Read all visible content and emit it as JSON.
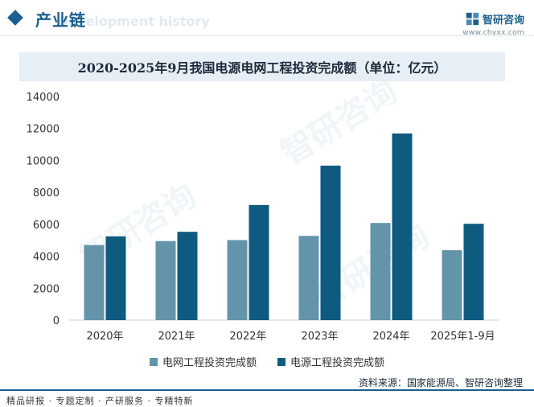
{
  "header": {
    "section_title": "产业链",
    "watermark_en": "Development history",
    "brand_name": "智研咨询",
    "brand_url": "www.chyxx.com"
  },
  "watermark_text": "智研咨询",
  "chart_data": {
    "type": "bar",
    "title": "2020-2025年9月我国电源电网工程投资完成额（单位：亿元）",
    "categories": [
      "2020年",
      "2021年",
      "2022年",
      "2023年",
      "2024年",
      "2025年1-9月"
    ],
    "series": [
      {
        "name": "电网工程投资完成额",
        "color": "#6494aa",
        "values": [
          4699,
          4951,
          5012,
          5275,
          6083,
          4378
        ]
      },
      {
        "name": "电源工程投资完成额",
        "color": "#0f5b7f",
        "values": [
          5244,
          5530,
          7208,
          9675,
          11687,
          6033
        ]
      }
    ],
    "ylim": [
      0,
      14000
    ],
    "yticks": [
      0,
      2000,
      4000,
      6000,
      8000,
      10000,
      12000,
      14000
    ],
    "xlabel": "",
    "ylabel": "",
    "grid": false,
    "legend_position": "bottom"
  },
  "footer": {
    "source": "资料来源：国家能源局、智研咨询整理",
    "slogan": "精品研报 · 专题定制 · 产研服务 · 专精特新"
  }
}
